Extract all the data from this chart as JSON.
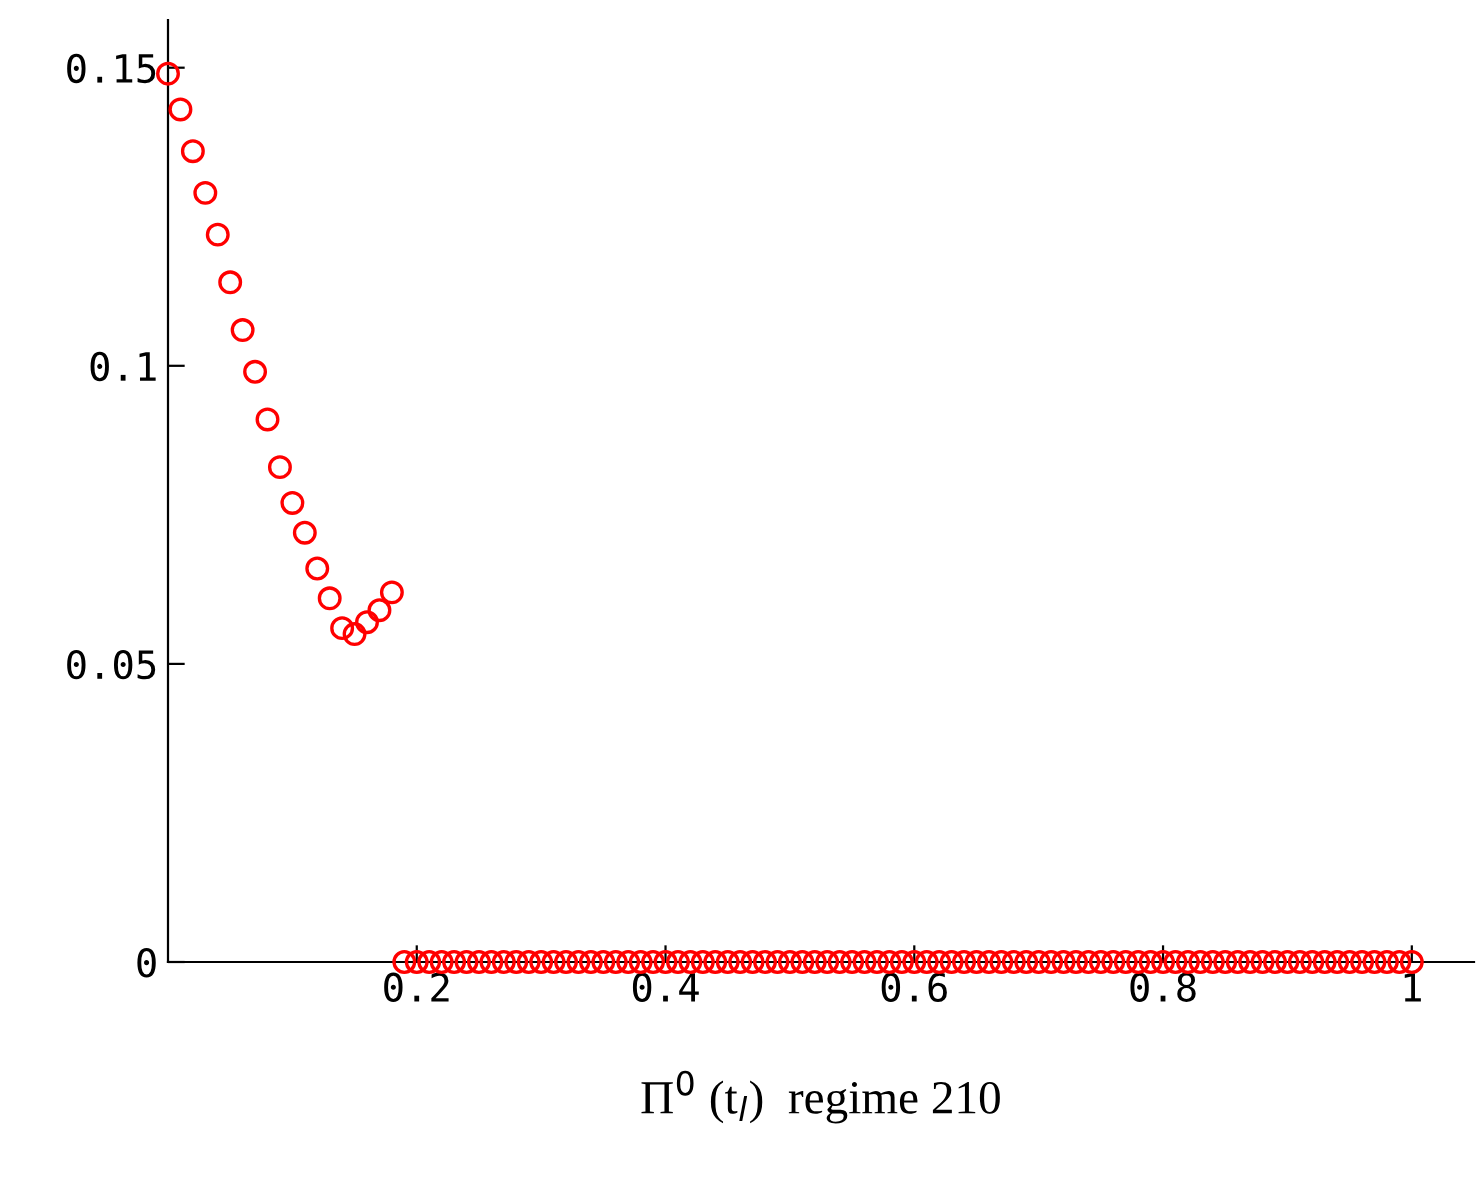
{
  "chart_data": {
    "type": "scatter",
    "xlabel": "Π$^{0}$ (t$_{l}$)  regime 210",
    "x": [
      0,
      0.01,
      0.02,
      0.03,
      0.04,
      0.05,
      0.06,
      0.07,
      0.08,
      0.09,
      0.1,
      0.11,
      0.12,
      0.13,
      0.14,
      0.15,
      0.16,
      0.17,
      0.18,
      0.19,
      0.2,
      0.21,
      0.22,
      0.23,
      0.24,
      0.25,
      0.26,
      0.27,
      0.28,
      0.29,
      0.3,
      0.31,
      0.32,
      0.33,
      0.34,
      0.35,
      0.36,
      0.37,
      0.38,
      0.39,
      0.4,
      0.41,
      0.42,
      0.43,
      0.44,
      0.45,
      0.46,
      0.47,
      0.48,
      0.49,
      0.5,
      0.51,
      0.52,
      0.53,
      0.54,
      0.55,
      0.56,
      0.57,
      0.58,
      0.59,
      0.6,
      0.61,
      0.62,
      0.63,
      0.64,
      0.65,
      0.66,
      0.67,
      0.68,
      0.69,
      0.7,
      0.71,
      0.72,
      0.73,
      0.74,
      0.75,
      0.76,
      0.77,
      0.78,
      0.79,
      0.8,
      0.81,
      0.82,
      0.83,
      0.84,
      0.85,
      0.86,
      0.87,
      0.88,
      0.89,
      0.9,
      0.91,
      0.92,
      0.93,
      0.94,
      0.95,
      0.96,
      0.97,
      0.98,
      0.99,
      1.0
    ],
    "series": [
      {
        "color": "#ff0000",
        "values": [
          0.149,
          0.143,
          0.136,
          0.129,
          0.122,
          0.114,
          0.106,
          0.099,
          0.091,
          0.083,
          0.077,
          0.072,
          0.066,
          0.061,
          0.056,
          0.055,
          0.057,
          0.059,
          0.062,
          0,
          0,
          0,
          0,
          0,
          0,
          0,
          0,
          0,
          0,
          0,
          0,
          0,
          0,
          0,
          0,
          0,
          0,
          0,
          0,
          0,
          0,
          0,
          0,
          0,
          0,
          0,
          0,
          0,
          0,
          0,
          0,
          0,
          0,
          0,
          0,
          0,
          0,
          0,
          0,
          0,
          0,
          0,
          0,
          0,
          0,
          0,
          0,
          0,
          0,
          0,
          0,
          0,
          0,
          0,
          0,
          0,
          0,
          0,
          0,
          0,
          0,
          0,
          0,
          0,
          0,
          0,
          0,
          0,
          0,
          0,
          0,
          0,
          0,
          0,
          0,
          0,
          0,
          0,
          0,
          0,
          0
        ]
      }
    ],
    "xlim": [
      0,
      1.05
    ],
    "ylim": [
      0,
      0.158
    ],
    "xticks": [
      0.2,
      0.4,
      0.6,
      0.8,
      1
    ],
    "yticks": [
      0,
      0.05,
      0.1,
      0.15
    ],
    "marker": "circle",
    "grid": false,
    "legend": false
  }
}
